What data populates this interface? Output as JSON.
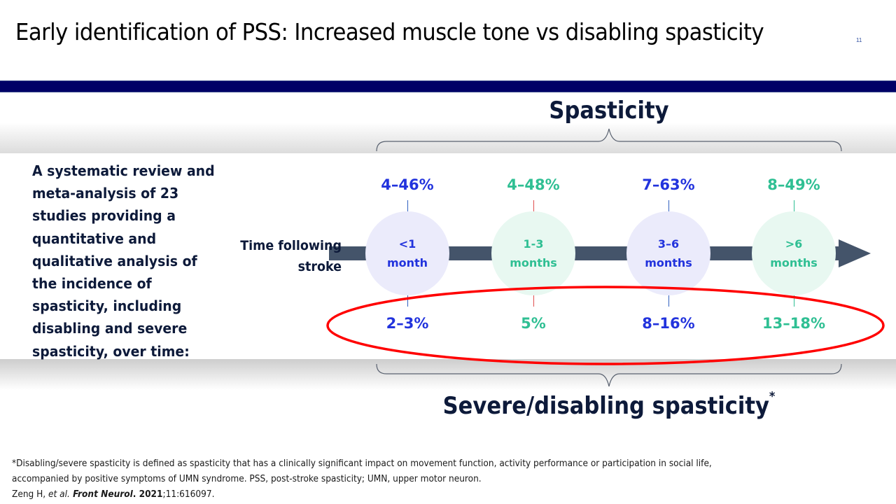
{
  "slide": {
    "title": "Early identification of PSS: Increased muscle tone vs disabling spasticity",
    "slide_number": "11"
  },
  "diagram": {
    "top_heading": "Spasticity",
    "bottom_heading": "Severe/disabling spasticity",
    "bottom_heading_marker": "*",
    "axis_label_line1": "Time following",
    "axis_label_line2": "stroke",
    "description": "A systematic review and meta-analysis of 23 studies providing a quantitative and qualitative analysis of the incidence of spasticity, including disabling and severe spasticity, over time:",
    "colors": {
      "blue": "#2233dd",
      "green": "#2fbf93",
      "blue_circle": "#ebebfb",
      "green_circle": "#e8f8f1",
      "arrow": "#44546a",
      "highlight_ellipse": "#ff0000",
      "navy_rule": "#000066"
    },
    "periods": [
      {
        "label_line1": "<1",
        "label_line2": "month",
        "spasticity": "4–46%",
        "severe": "2–3%",
        "theme": "blue"
      },
      {
        "label_line1": "1-3",
        "label_line2": "months",
        "spasticity": "4–48%",
        "severe": "5%",
        "theme": "green"
      },
      {
        "label_line1": "3–6",
        "label_line2": "months",
        "spasticity": "7–63%",
        "severe": "8–16%",
        "theme": "blue"
      },
      {
        "label_line1": ">6",
        "label_line2": "months",
        "spasticity": "8–49%",
        "severe": "13–18%",
        "theme": "green"
      }
    ]
  },
  "footnote": {
    "line1": "*Disabling/severe spasticity is defined as spasticity that has a clinically significant impact on movement function, activity performance or participation in social life,",
    "line2": "accompanied by positive symptoms of UMN syndrome. PSS, post-stroke spasticity; UMN, upper motor neuron.",
    "ref_author": "Zeng H, ",
    "ref_etal": "et al.",
    "ref_journal": " Front Neurol",
    "ref_dot": ". ",
    "ref_year": "2021",
    "ref_rest": ";11:616097."
  }
}
